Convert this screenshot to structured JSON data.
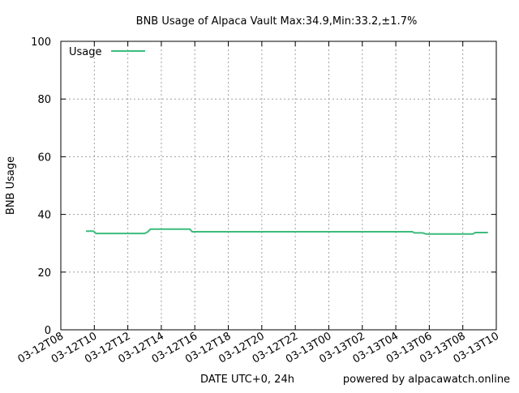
{
  "chart_data": {
    "type": "line",
    "title": "BNB Usage of Alpaca Vault Max:34.9,Min:33.2,±1.7%",
    "xlabel": "DATE UTC+0, 24h",
    "ylabel": "BNB Usage",
    "credit": "powered by alpacawatch.online",
    "ylim": [
      0,
      100
    ],
    "yticks": [
      0,
      20,
      40,
      60,
      80,
      100
    ],
    "xlim_hours": [
      0,
      26
    ],
    "xticks": [
      {
        "h": 0,
        "label": "03-12T08"
      },
      {
        "h": 2,
        "label": "03-12T10"
      },
      {
        "h": 4,
        "label": "03-12T12"
      },
      {
        "h": 6,
        "label": "03-12T14"
      },
      {
        "h": 8,
        "label": "03-12T16"
      },
      {
        "h": 10,
        "label": "03-12T18"
      },
      {
        "h": 12,
        "label": "03-12T20"
      },
      {
        "h": 14,
        "label": "03-12T22"
      },
      {
        "h": 16,
        "label": "03-13T00"
      },
      {
        "h": 18,
        "label": "03-13T02"
      },
      {
        "h": 20,
        "label": "03-13T04"
      },
      {
        "h": 22,
        "label": "03-13T06"
      },
      {
        "h": 24,
        "label": "03-13T08"
      },
      {
        "h": 26,
        "label": "03-13T10"
      }
    ],
    "grid": true,
    "legend": "top-left",
    "series": [
      {
        "name": "Usage",
        "color": "#3cbc7c",
        "x": [
          1.5,
          1.95,
          2.1,
          2.8,
          3.5,
          4.4,
          5.0,
          5.2,
          5.35,
          6.0,
          7.0,
          7.7,
          7.85,
          9.0,
          11.0,
          13.0,
          15.0,
          17.0,
          19.0,
          21.0,
          21.1,
          21.6,
          21.8,
          22.5,
          23.5,
          24.6,
          24.75,
          25.5
        ],
        "values": [
          34.2,
          34.2,
          33.4,
          33.4,
          33.4,
          33.4,
          33.4,
          34.0,
          34.9,
          34.9,
          34.9,
          34.9,
          34.0,
          34.0,
          34.0,
          34.0,
          34.0,
          34.0,
          34.0,
          34.0,
          33.6,
          33.6,
          33.2,
          33.2,
          33.2,
          33.2,
          33.7,
          33.7
        ]
      }
    ]
  }
}
